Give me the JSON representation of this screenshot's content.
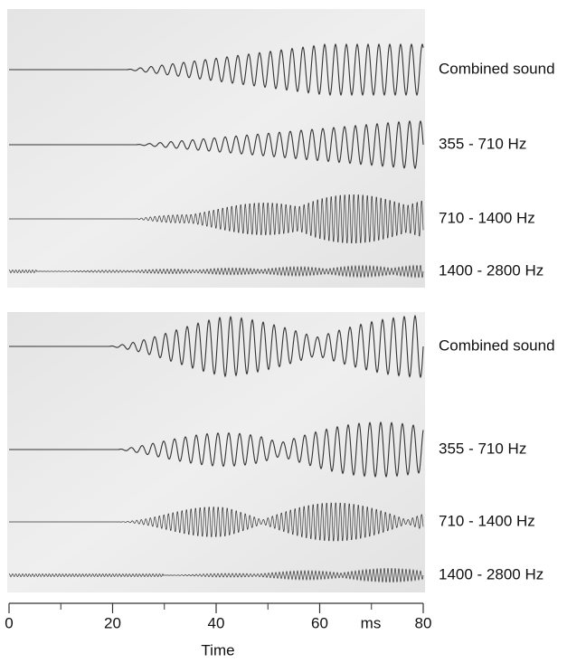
{
  "panels": [
    {
      "labels": [
        "Combined sound",
        "355 - 710 Hz",
        "710 - 1400 Hz",
        "1400 - 2800 Hz"
      ]
    },
    {
      "labels": [
        "Combined sound",
        "355 - 710 Hz",
        "710 - 1400 Hz",
        "1400 - 2800 Hz"
      ]
    }
  ],
  "axis": {
    "xlim": [
      0,
      80
    ],
    "xticks": [
      0,
      20,
      40,
      60,
      80
    ],
    "unit": "ms",
    "title": "Time"
  }
}
